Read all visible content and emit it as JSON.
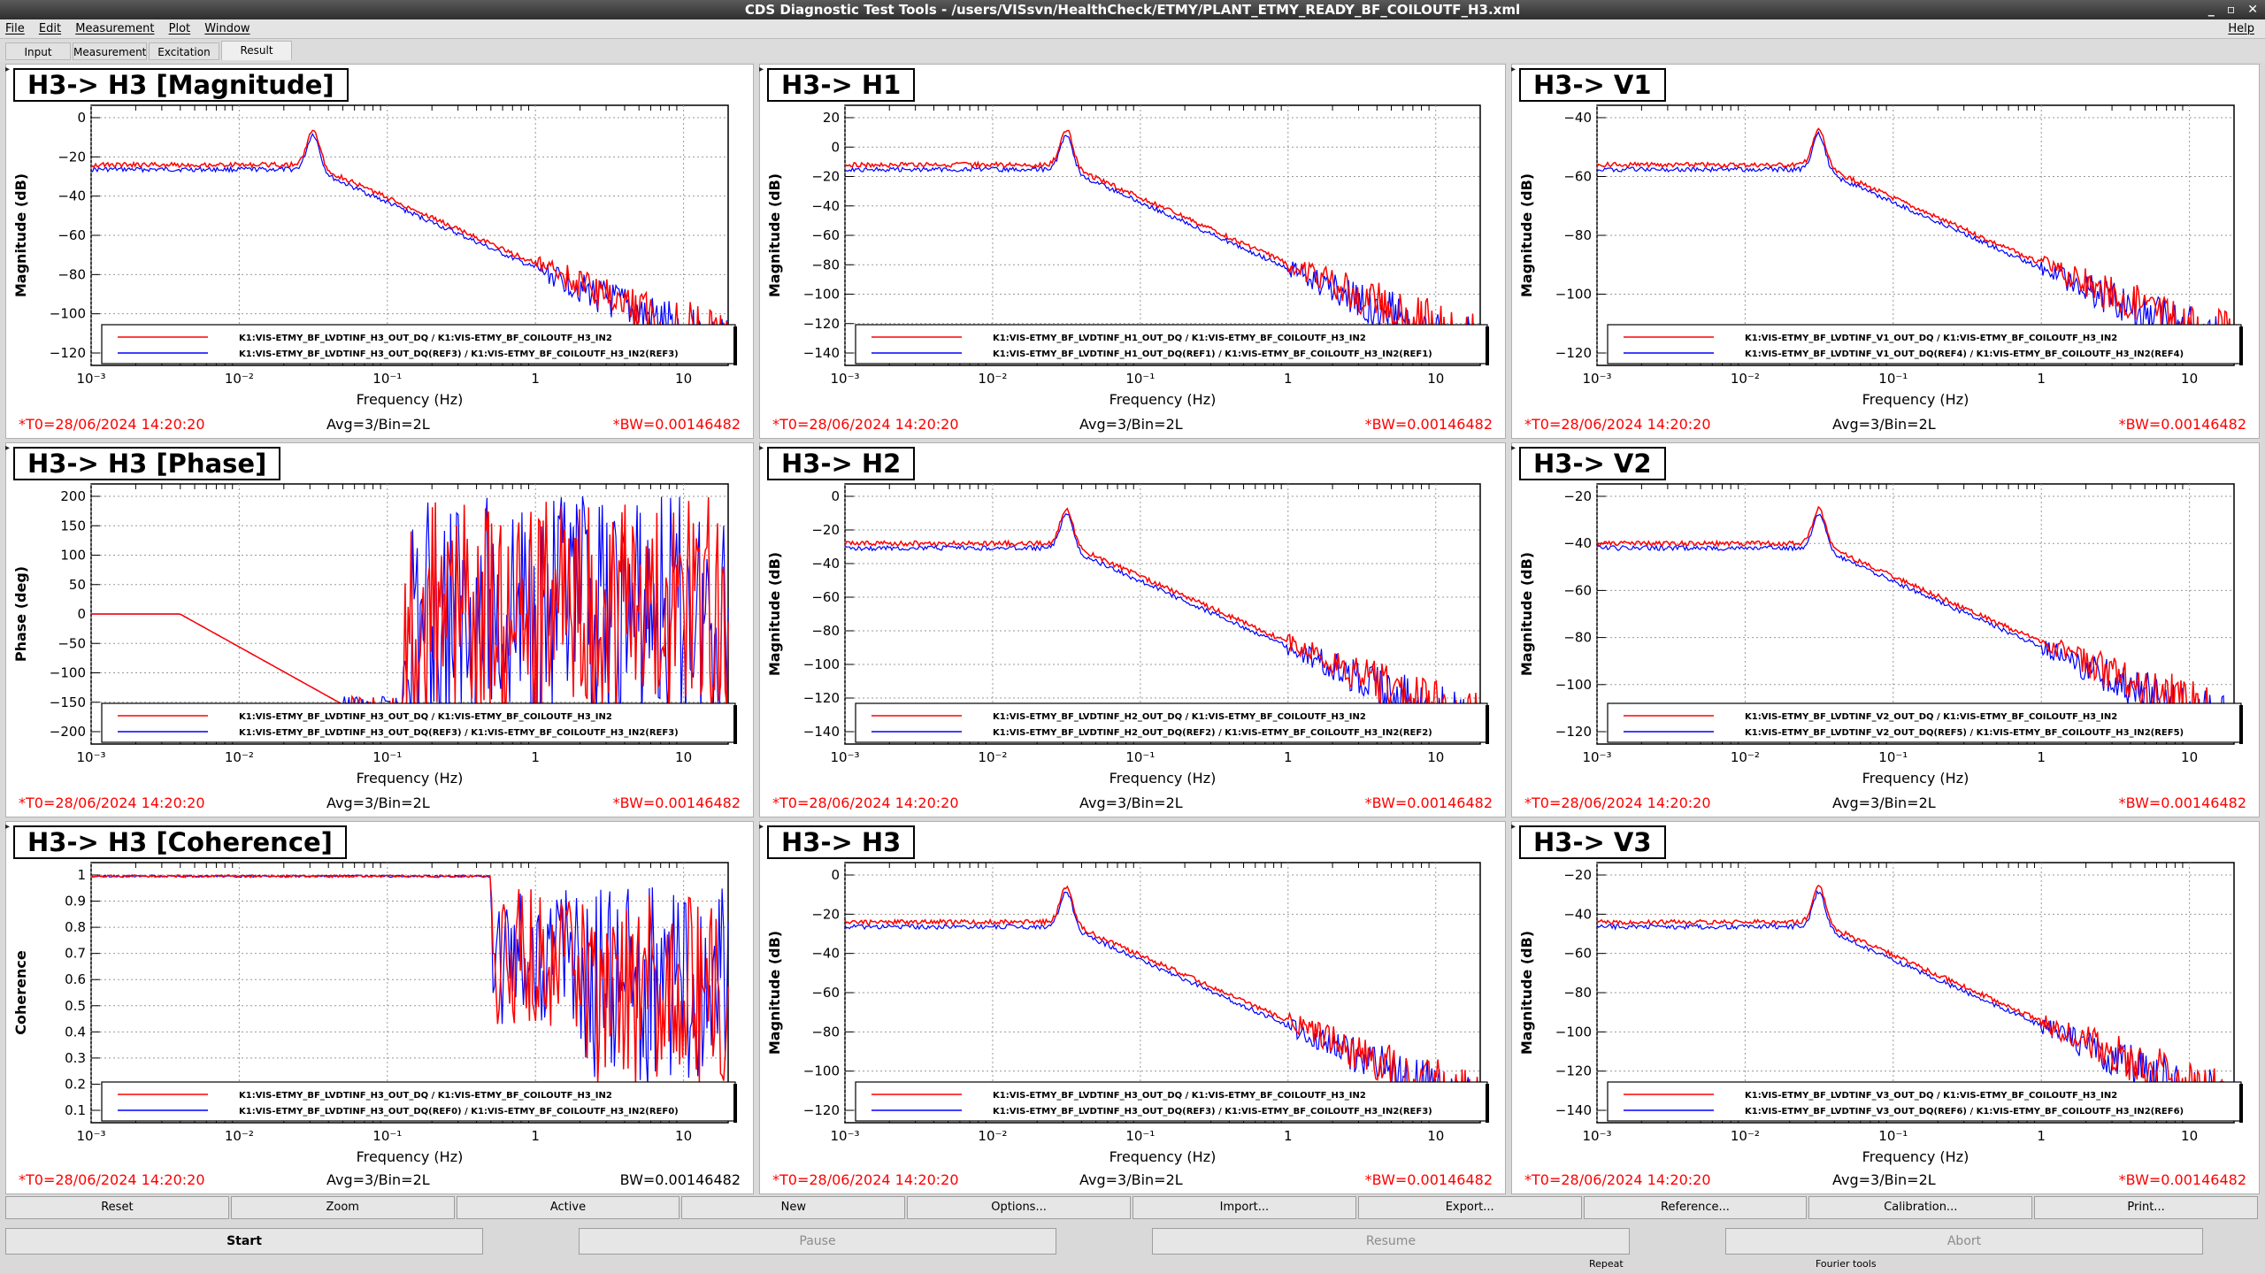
{
  "window": {
    "title": "CDS Diagnostic Test Tools - /users/VISsvn/HealthCheck/ETMY/PLANT_ETMY_READY_BF_COILOUTF_H3.xml"
  },
  "menu": {
    "items": [
      "File",
      "Edit",
      "Measurement",
      "Plot",
      "Window"
    ],
    "help": "Help"
  },
  "tabs": [
    "Input",
    "Measurement",
    "Excitation",
    "Result"
  ],
  "panels": [
    {
      "title": "H3-> H3 [Magnitude]",
      "ylabel": "Magnitude (dB)",
      "xlabel": "Frequency (Hz)",
      "yticks": [
        "0",
        "−20",
        "−40",
        "−60",
        "−80",
        "−100",
        "−120"
      ],
      "legend": [
        "K1:VIS-ETMY_BF_LVDTINF_H3_OUT_DQ / K1:VIS-ETMY_BF_COILOUTF_H3_IN2",
        "K1:VIS-ETMY_BF_LVDTINF_H3_OUT_DQ(REF3) / K1:VIS-ETMY_BF_COILOUTF_H3_IN2(REF3)"
      ],
      "t0": "*T0=28/06/2024 14:20:20",
      "avg": "Avg=3/Bin=2L",
      "bw": "*BW=0.00146482",
      "bw_red": true
    },
    {
      "title": "H3-> H1",
      "ylabel": "Magnitude (dB)",
      "xlabel": "Frequency (Hz)",
      "yticks": [
        "20",
        "0",
        "−20",
        "−40",
        "−60",
        "−80",
        "−100",
        "−120",
        "−140"
      ],
      "legend": [
        "K1:VIS-ETMY_BF_LVDTINF_H1_OUT_DQ / K1:VIS-ETMY_BF_COILOUTF_H3_IN2",
        "K1:VIS-ETMY_BF_LVDTINF_H1_OUT_DQ(REF1) / K1:VIS-ETMY_BF_COILOUTF_H3_IN2(REF1)"
      ],
      "t0": "*T0=28/06/2024 14:20:20",
      "avg": "Avg=3/Bin=2L",
      "bw": "*BW=0.00146482",
      "bw_red": true
    },
    {
      "title": "H3-> V1",
      "ylabel": "Magnitude (dB)",
      "xlabel": "Frequency (Hz)",
      "yticks": [
        "−40",
        "−60",
        "−80",
        "−100",
        "−120"
      ],
      "legend": [
        "K1:VIS-ETMY_BF_LVDTINF_V1_OUT_DQ / K1:VIS-ETMY_BF_COILOUTF_H3_IN2",
        "K1:VIS-ETMY_BF_LVDTINF_V1_OUT_DQ(REF4) / K1:VIS-ETMY_BF_COILOUTF_H3_IN2(REF4)"
      ],
      "t0": "*T0=28/06/2024 14:20:20",
      "avg": "Avg=3/Bin=2L",
      "bw": "*BW=0.00146482",
      "bw_red": true
    },
    {
      "title": "H3-> H3 [Phase]",
      "ylabel": "Phase (deg)",
      "xlabel": "Frequency (Hz)",
      "yticks": [
        "200",
        "150",
        "100",
        "50",
        "0",
        "−50",
        "−100",
        "−150",
        "−200"
      ],
      "legend": [
        "K1:VIS-ETMY_BF_LVDTINF_H3_OUT_DQ / K1:VIS-ETMY_BF_COILOUTF_H3_IN2",
        "K1:VIS-ETMY_BF_LVDTINF_H3_OUT_DQ(REF3) / K1:VIS-ETMY_BF_COILOUTF_H3_IN2(REF3)"
      ],
      "t0": "*T0=28/06/2024 14:20:20",
      "avg": "Avg=3/Bin=2L",
      "bw": "*BW=0.00146482",
      "bw_red": true
    },
    {
      "title": "H3-> H2",
      "ylabel": "Magnitude (dB)",
      "xlabel": "Frequency (Hz)",
      "yticks": [
        "0",
        "−20",
        "−40",
        "−60",
        "−80",
        "−100",
        "−120",
        "−140"
      ],
      "legend": [
        "K1:VIS-ETMY_BF_LVDTINF_H2_OUT_DQ / K1:VIS-ETMY_BF_COILOUTF_H3_IN2",
        "K1:VIS-ETMY_BF_LVDTINF_H2_OUT_DQ(REF2) / K1:VIS-ETMY_BF_COILOUTF_H3_IN2(REF2)"
      ],
      "t0": "*T0=28/06/2024 14:20:20",
      "avg": "Avg=3/Bin=2L",
      "bw": "*BW=0.00146482",
      "bw_red": true
    },
    {
      "title": "H3-> V2",
      "ylabel": "Magnitude (dB)",
      "xlabel": "Frequency (Hz)",
      "yticks": [
        "−20",
        "−40",
        "−60",
        "−80",
        "−100",
        "−120"
      ],
      "legend": [
        "K1:VIS-ETMY_BF_LVDTINF_V2_OUT_DQ / K1:VIS-ETMY_BF_COILOUTF_H3_IN2",
        "K1:VIS-ETMY_BF_LVDTINF_V2_OUT_DQ(REF5) / K1:VIS-ETMY_BF_COILOUTF_H3_IN2(REF5)"
      ],
      "t0": "*T0=28/06/2024 14:20:20",
      "avg": "Avg=3/Bin=2L",
      "bw": "*BW=0.00146482",
      "bw_red": true
    },
    {
      "title": "H3-> H3 [Coherence]",
      "ylabel": "Coherence",
      "xlabel": "Frequency (Hz)",
      "yticks": [
        "1",
        "0.9",
        "0.8",
        "0.7",
        "0.6",
        "0.5",
        "0.4",
        "0.3",
        "0.2",
        "0.1"
      ],
      "legend": [
        "K1:VIS-ETMY_BF_LVDTINF_H3_OUT_DQ / K1:VIS-ETMY_BF_COILOUTF_H3_IN2",
        "K1:VIS-ETMY_BF_LVDTINF_H3_OUT_DQ(REF0) / K1:VIS-ETMY_BF_COILOUTF_H3_IN2(REF0)"
      ],
      "t0": "*T0=28/06/2024 14:20:20",
      "avg": "Avg=3/Bin=2L",
      "bw": "BW=0.00146482",
      "bw_red": false
    },
    {
      "title": "H3-> H3",
      "ylabel": "Magnitude (dB)",
      "xlabel": "Frequency (Hz)",
      "yticks": [
        "0",
        "−20",
        "−40",
        "−60",
        "−80",
        "−100",
        "−120"
      ],
      "legend": [
        "K1:VIS-ETMY_BF_LVDTINF_H3_OUT_DQ / K1:VIS-ETMY_BF_COILOUTF_H3_IN2",
        "K1:VIS-ETMY_BF_LVDTINF_H3_OUT_DQ(REF3) / K1:VIS-ETMY_BF_COILOUTF_H3_IN2(REF3)"
      ],
      "t0": "*T0=28/06/2024 14:20:20",
      "avg": "Avg=3/Bin=2L",
      "bw": "*BW=0.00146482",
      "bw_red": true
    },
    {
      "title": "H3-> V3",
      "ylabel": "Magnitude (dB)",
      "xlabel": "Frequency (Hz)",
      "yticks": [
        "−20",
        "−40",
        "−60",
        "−80",
        "−100",
        "−120",
        "−140"
      ],
      "legend": [
        "K1:VIS-ETMY_BF_LVDTINF_V3_OUT_DQ / K1:VIS-ETMY_BF_COILOUTF_H3_IN2",
        "K1:VIS-ETMY_BF_LVDTINF_V3_OUT_DQ(REF6) / K1:VIS-ETMY_BF_COILOUTF_H3_IN2(REF6)"
      ],
      "t0": "*T0=28/06/2024 14:20:20",
      "avg": "Avg=3/Bin=2L",
      "bw": "*BW=0.00146482",
      "bw_red": true
    }
  ],
  "xticks": [
    "10⁻³",
    "10⁻²",
    "10⁻¹",
    "1",
    "10"
  ],
  "buttons_row1": [
    "Reset",
    "Zoom",
    "Active",
    "New",
    "Options...",
    "Import...",
    "Export...",
    "Reference...",
    "Calibration...",
    "Print..."
  ],
  "buttons_row2": [
    "Start",
    "Pause",
    "Resume",
    "Abort"
  ],
  "status": {
    "repeat": "Repeat",
    "fourier": "Fourier tools"
  },
  "colors": {
    "measured": "#ff0000",
    "reference": "#0000ff",
    "footer_red": "#ff0000"
  }
}
